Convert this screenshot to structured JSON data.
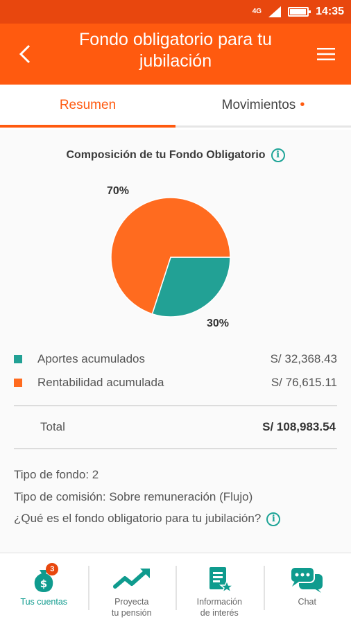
{
  "status_bar": {
    "network": "4G",
    "time": "14:35",
    "battery_level": 0.9
  },
  "header": {
    "title": "Fondo obligatorio para tu jubilación",
    "back_icon": "chevron-left-icon",
    "menu_icon": "hamburger-icon"
  },
  "tabs": [
    {
      "label": "Resumen",
      "active": true
    },
    {
      "label": "Movimientos",
      "indicator": "•",
      "active": false
    }
  ],
  "summary": {
    "title": "Composición de tu Fondo Obligatorio",
    "info_glyph": "i",
    "chart_data": {
      "type": "pie",
      "slices": [
        {
          "label": "Rentabilidad acumulada",
          "value": 70,
          "display": "70%",
          "color": "#ff6b1f"
        },
        {
          "label": "Aportes acumulados",
          "value": 30,
          "display": "30%",
          "color": "#22a195"
        }
      ]
    },
    "legend": [
      {
        "label": "Aportes acumulados",
        "value": "S/ 32,368.43",
        "color": "#22a195"
      },
      {
        "label": "Rentabilidad acumulada",
        "value": "S/ 76,615.11",
        "color": "#ff6b1f"
      }
    ],
    "total": {
      "label": "Total",
      "value": "S/  108,983.54"
    }
  },
  "details": {
    "fund_type": "Tipo de fondo: 2",
    "commission_type": "Tipo de comisión: Sobre remuneración (Flujo)",
    "help_link": "¿Qué es el fondo obligatorio para tu jubilación?",
    "info_glyph": "i"
  },
  "bottom_nav": [
    {
      "label": "Tus cuentas",
      "icon": "money-bag-icon",
      "badge": "3",
      "active": true
    },
    {
      "label": "Proyecta\ntu pensión",
      "icon": "trend-up-icon",
      "active": false
    },
    {
      "label": "Información\nde interés",
      "icon": "document-star-icon",
      "active": false
    },
    {
      "label": "Chat",
      "icon": "chat-bubbles-icon",
      "active": false
    }
  ]
}
